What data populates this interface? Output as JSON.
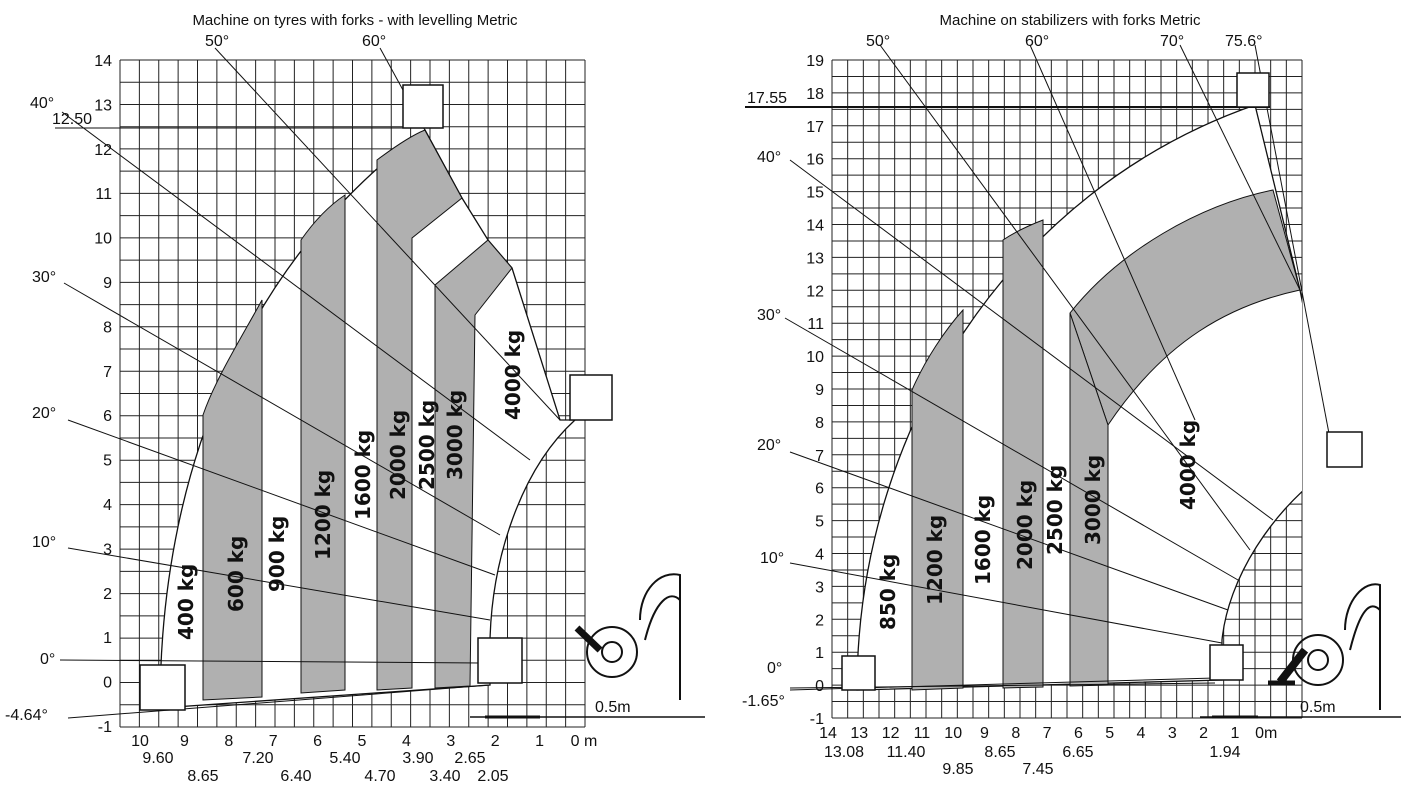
{
  "left": {
    "title": "Machine on tyres with forks - with levelling Metric",
    "y_axis": [
      "14",
      "13",
      "12",
      "11",
      "10",
      "9",
      "8",
      "7",
      "6",
      "5",
      "4",
      "3",
      "2",
      "1",
      "0",
      "-1"
    ],
    "x_axis": [
      "10",
      "9",
      "8",
      "7",
      "6",
      "5",
      "4",
      "3",
      "2",
      "1",
      "0 m"
    ],
    "x_dims": [
      "9.60",
      "8.65",
      "7.20",
      "6.40",
      "5.40",
      "4.70",
      "3.90",
      "3.40",
      "2.65",
      "2.05"
    ],
    "angles": [
      "50°",
      "60°",
      "40°",
      "30°",
      "20°",
      "10°",
      "0°",
      "-4.64°"
    ],
    "max_height": "12.50",
    "loads": [
      "400 kg",
      "600 kg",
      "900 kg",
      "1200 kg",
      "1600 kg",
      "2000 kg",
      "2500 kg",
      "3000 kg",
      "4000 kg"
    ],
    "scale": "0.5m"
  },
  "right": {
    "title": "Machine on stabilizers with forks Metric",
    "y_axis": [
      "19",
      "18",
      "17",
      "16",
      "15",
      "14",
      "13",
      "12",
      "11",
      "10",
      "9",
      "8",
      "7",
      "6",
      "5",
      "4",
      "3",
      "2",
      "1",
      "0",
      "-1"
    ],
    "x_axis": [
      "14",
      "13",
      "12",
      "11",
      "10",
      "9",
      "8",
      "7",
      "6",
      "5",
      "4",
      "3",
      "2",
      "1",
      "0m"
    ],
    "x_dims": [
      "13.08",
      "11.40",
      "9.85",
      "8.65",
      "7.45",
      "6.65",
      "1.94"
    ],
    "angles": [
      "50°",
      "60°",
      "70°",
      "75.6°",
      "40°",
      "30°",
      "20°",
      "10°",
      "0°",
      "-1.65°"
    ],
    "max_height": "17.55",
    "loads": [
      "850 kg",
      "1200 kg",
      "1600 kg",
      "2000 kg",
      "2500 kg",
      "3000 kg",
      "4000 kg"
    ],
    "scale": "0.5m"
  }
}
